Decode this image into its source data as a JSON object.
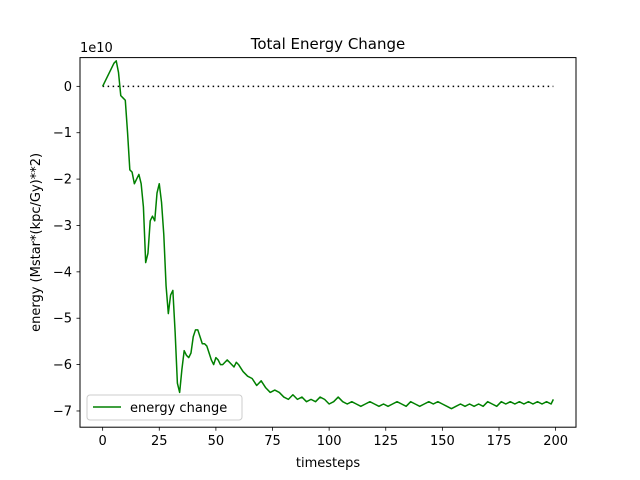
{
  "chart_data": {
    "type": "line",
    "title": "Total Energy Change",
    "xlabel": "timesteps",
    "ylabel": "energy (Mstar*(kpc/Gy)**2)",
    "y_scale_label": "1e10",
    "xlim": [
      -10,
      209
    ],
    "ylim": [
      -7.35,
      0.62
    ],
    "x_ticks": [
      0,
      25,
      50,
      75,
      100,
      125,
      150,
      175,
      200
    ],
    "x_tick_labels": [
      "0",
      "25",
      "50",
      "75",
      "100",
      "125",
      "150",
      "175",
      "200"
    ],
    "y_ticks": [
      0,
      -1,
      -2,
      -3,
      -4,
      -5,
      -6,
      -7
    ],
    "y_tick_labels": [
      "0",
      "−1",
      "−2",
      "−3",
      "−4",
      "−5",
      "−6",
      "−7"
    ],
    "legend": {
      "position": "lower left",
      "entries": [
        "energy change"
      ]
    },
    "colors": {
      "series": "#008000",
      "reference": "#000000"
    },
    "series": [
      {
        "name": "energy change",
        "x": [
          0,
          2,
          4,
          5,
          6,
          7,
          8,
          9,
          10,
          11,
          12,
          13,
          14,
          15,
          16,
          17,
          18,
          19,
          20,
          21,
          22,
          23,
          24,
          25,
          26,
          27,
          28,
          29,
          30,
          31,
          32,
          33,
          34,
          35,
          36,
          37,
          38,
          39,
          40,
          41,
          42,
          43,
          44,
          45,
          46,
          47,
          48,
          49,
          50,
          51,
          52,
          53,
          54,
          55,
          56,
          57,
          58,
          59,
          60,
          62,
          64,
          66,
          68,
          70,
          72,
          74,
          76,
          78,
          80,
          82,
          84,
          86,
          88,
          90,
          92,
          94,
          96,
          98,
          100,
          102,
          104,
          106,
          108,
          110,
          112,
          114,
          116,
          118,
          120,
          122,
          124,
          126,
          128,
          130,
          132,
          134,
          136,
          138,
          140,
          142,
          144,
          146,
          148,
          150,
          152,
          154,
          156,
          158,
          160,
          162,
          164,
          166,
          168,
          170,
          172,
          174,
          176,
          178,
          180,
          182,
          184,
          186,
          188,
          190,
          192,
          194,
          196,
          198,
          199
        ],
        "y": [
          0,
          0.2,
          0.4,
          0.5,
          0.55,
          0.3,
          -0.2,
          -0.25,
          -0.3,
          -1.0,
          -1.8,
          -1.85,
          -2.1,
          -2.0,
          -1.9,
          -2.1,
          -2.6,
          -3.8,
          -3.6,
          -2.9,
          -2.8,
          -2.9,
          -2.3,
          -2.1,
          -2.5,
          -3.2,
          -4.3,
          -4.9,
          -4.5,
          -4.4,
          -5.3,
          -6.4,
          -6.6,
          -6.1,
          -5.7,
          -5.8,
          -5.85,
          -5.75,
          -5.4,
          -5.25,
          -5.25,
          -5.4,
          -5.55,
          -5.55,
          -5.6,
          -5.75,
          -5.9,
          -6.0,
          -5.85,
          -5.9,
          -6.0,
          -6.0,
          -5.95,
          -5.9,
          -5.95,
          -6.0,
          -6.05,
          -5.95,
          -6.0,
          -6.15,
          -6.25,
          -6.3,
          -6.45,
          -6.35,
          -6.5,
          -6.6,
          -6.55,
          -6.6,
          -6.7,
          -6.75,
          -6.65,
          -6.75,
          -6.7,
          -6.8,
          -6.75,
          -6.8,
          -6.7,
          -6.75,
          -6.85,
          -6.8,
          -6.7,
          -6.8,
          -6.85,
          -6.8,
          -6.85,
          -6.9,
          -6.85,
          -6.8,
          -6.85,
          -6.9,
          -6.85,
          -6.9,
          -6.85,
          -6.8,
          -6.85,
          -6.9,
          -6.8,
          -6.85,
          -6.9,
          -6.85,
          -6.8,
          -6.85,
          -6.8,
          -6.85,
          -6.9,
          -6.95,
          -6.9,
          -6.85,
          -6.9,
          -6.85,
          -6.9,
          -6.85,
          -6.9,
          -6.8,
          -6.85,
          -6.9,
          -6.8,
          -6.85,
          -6.8,
          -6.85,
          -6.8,
          -6.85,
          -6.8,
          -6.85,
          -6.8,
          -6.85,
          -6.8,
          -6.85,
          -6.75
        ]
      },
      {
        "name": "",
        "style": "dotted",
        "x": [
          0,
          199
        ],
        "y": [
          0,
          0
        ]
      }
    ]
  }
}
